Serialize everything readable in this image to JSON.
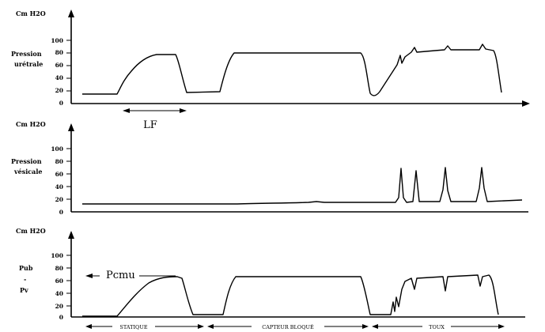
{
  "figure": {
    "panels": [
      {
        "id": "uretrale",
        "unit_label": "Cm H2O",
        "side_label_lines": [
          "Pression",
          "urétrale"
        ],
        "ticks": [
          "100",
          "80",
          "60",
          "40",
          "20",
          "0"
        ],
        "annotation": "LF"
      },
      {
        "id": "vesicale",
        "unit_label": "Cm H2O",
        "side_label_lines": [
          "Pression",
          "vésicale"
        ],
        "ticks": [
          "100",
          "80",
          "60",
          "40",
          "20",
          "0"
        ]
      },
      {
        "id": "difference",
        "unit_label": "Cm H2O",
        "side_label_lines": [
          "Pub",
          "-",
          "Pv"
        ],
        "ticks": [
          "100",
          "80",
          "60",
          "40",
          "20",
          "0"
        ],
        "annotation": "Pcmu"
      }
    ],
    "phases": [
      "STATIQUE",
      "CAPTEUR BLOQUÉ",
      "TOUX"
    ],
    "colors": {
      "ink": "#000000",
      "background": "#ffffff"
    }
  }
}
